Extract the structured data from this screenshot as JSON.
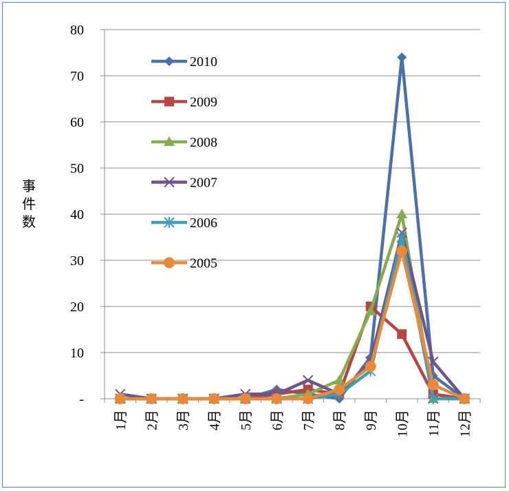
{
  "chart_data": {
    "type": "line",
    "ylabel": "事件数",
    "xlabel": "",
    "title": "",
    "categories": [
      "1月",
      "2月",
      "3月",
      "4月",
      "5月",
      "6月",
      "7月",
      "8月",
      "9月",
      "10月",
      "11月",
      "12月"
    ],
    "y_tick_labels": [
      "-",
      "10",
      "20",
      "30",
      "40",
      "50",
      "60",
      "70",
      "80"
    ],
    "ylim": [
      0,
      80
    ],
    "grid": true,
    "legend_position": "top-left-inside",
    "series": [
      {
        "name": "2010",
        "color": "#4a72a8",
        "marker": "diamond",
        "values": [
          0,
          0,
          0,
          0,
          0,
          2,
          1,
          0,
          9,
          74,
          5,
          0
        ]
      },
      {
        "name": "2009",
        "color": "#b54643",
        "marker": "square",
        "values": [
          0,
          0,
          0,
          0,
          0,
          1,
          2,
          1,
          20,
          14,
          1,
          0
        ]
      },
      {
        "name": "2008",
        "color": "#8aaa50",
        "marker": "triangle",
        "values": [
          0,
          0,
          0,
          0,
          0,
          0,
          1,
          4,
          19,
          40,
          0,
          0
        ]
      },
      {
        "name": "2007",
        "color": "#6e548f",
        "marker": "x",
        "values": [
          1,
          0,
          0,
          0,
          1,
          1,
          4,
          1,
          8,
          36,
          8,
          0
        ]
      },
      {
        "name": "2006",
        "color": "#3e9eb6",
        "marker": "star",
        "values": [
          0,
          0,
          0,
          0,
          0,
          0,
          0,
          1,
          6,
          35,
          0,
          0
        ]
      },
      {
        "name": "2005",
        "color": "#e88a3a",
        "marker": "circle",
        "values": [
          0,
          0,
          0,
          0,
          0,
          0,
          0,
          2,
          7,
          32,
          3,
          0
        ]
      }
    ]
  }
}
